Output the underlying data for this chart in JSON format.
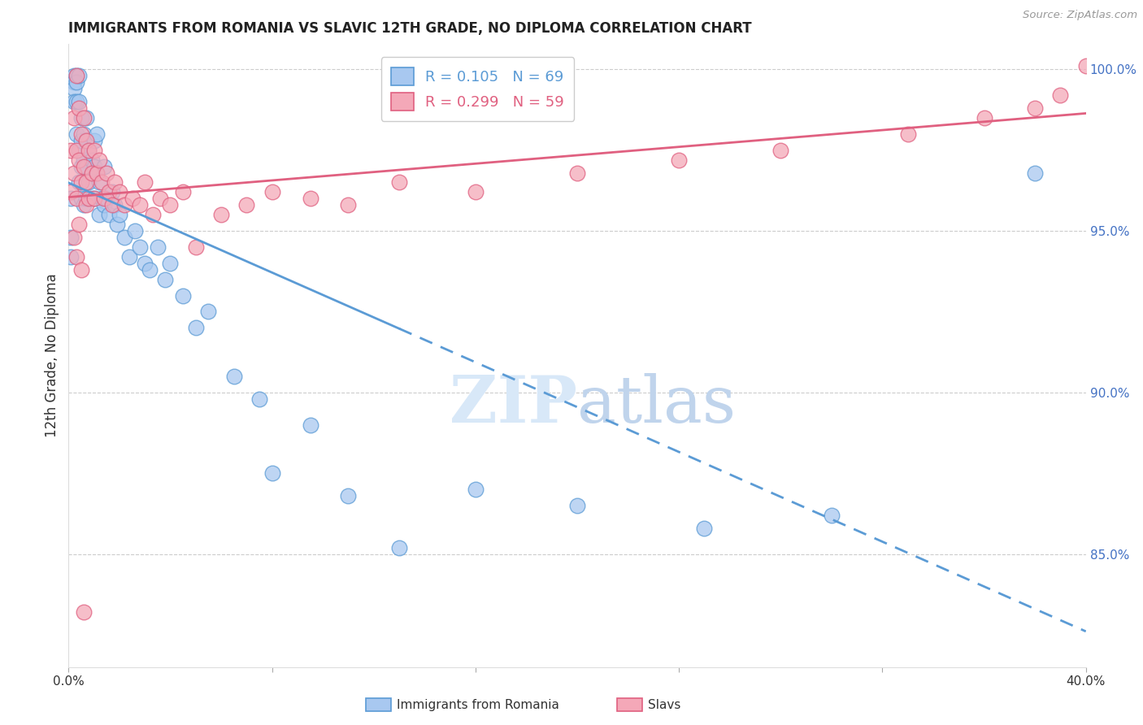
{
  "title": "IMMIGRANTS FROM ROMANIA VS SLAVIC 12TH GRADE, NO DIPLOMA CORRELATION CHART",
  "source": "Source: ZipAtlas.com",
  "ylabel": "12th Grade, No Diploma",
  "legend_romania": "Immigrants from Romania",
  "legend_slavs": "Slavs",
  "R_romania": 0.105,
  "N_romania": 69,
  "R_slavs": 0.299,
  "N_slavs": 59,
  "color_romania": "#A8C8F0",
  "color_slavs": "#F4A8B8",
  "color_romania_line": "#5B9BD5",
  "color_slavs_line": "#E06080",
  "color_right_axis": "#4472C4",
  "watermark_zip": "#D0DCF0",
  "watermark_atlas": "#C0D0E8",
  "xmin": 0.0,
  "xmax": 0.4,
  "ymin": 0.815,
  "ymax": 1.008,
  "ylabel_right_ticks": [
    "100.0%",
    "95.0%",
    "90.0%",
    "85.0%"
  ],
  "ylabel_right_positions": [
    1.0,
    0.95,
    0.9,
    0.85
  ],
  "romania_x": [
    0.001,
    0.001,
    0.001,
    0.002,
    0.002,
    0.002,
    0.002,
    0.003,
    0.003,
    0.003,
    0.003,
    0.004,
    0.004,
    0.004,
    0.004,
    0.005,
    0.005,
    0.005,
    0.005,
    0.006,
    0.006,
    0.006,
    0.007,
    0.007,
    0.007,
    0.007,
    0.008,
    0.008,
    0.009,
    0.009,
    0.01,
    0.01,
    0.01,
    0.011,
    0.011,
    0.012,
    0.012,
    0.013,
    0.014,
    0.014,
    0.015,
    0.016,
    0.017,
    0.018,
    0.019,
    0.02,
    0.022,
    0.024,
    0.026,
    0.028,
    0.03,
    0.032,
    0.035,
    0.038,
    0.04,
    0.045,
    0.05,
    0.055,
    0.065,
    0.075,
    0.08,
    0.095,
    0.11,
    0.13,
    0.16,
    0.2,
    0.25,
    0.3,
    0.38
  ],
  "romania_y": [
    0.96,
    0.948,
    0.942,
    0.998,
    0.996,
    0.994,
    0.99,
    0.998,
    0.996,
    0.99,
    0.98,
    0.998,
    0.99,
    0.975,
    0.965,
    0.985,
    0.978,
    0.97,
    0.96,
    0.98,
    0.972,
    0.958,
    0.985,
    0.978,
    0.97,
    0.96,
    0.975,
    0.965,
    0.972,
    0.96,
    0.978,
    0.97,
    0.96,
    0.98,
    0.968,
    0.965,
    0.955,
    0.96,
    0.97,
    0.958,
    0.96,
    0.955,
    0.962,
    0.958,
    0.952,
    0.955,
    0.948,
    0.942,
    0.95,
    0.945,
    0.94,
    0.938,
    0.945,
    0.935,
    0.94,
    0.93,
    0.92,
    0.925,
    0.905,
    0.898,
    0.875,
    0.89,
    0.868,
    0.852,
    0.87,
    0.865,
    0.858,
    0.862,
    0.968
  ],
  "slavs_x": [
    0.001,
    0.001,
    0.002,
    0.002,
    0.003,
    0.003,
    0.003,
    0.004,
    0.004,
    0.005,
    0.005,
    0.006,
    0.006,
    0.007,
    0.007,
    0.007,
    0.008,
    0.008,
    0.009,
    0.01,
    0.01,
    0.011,
    0.012,
    0.013,
    0.014,
    0.015,
    0.016,
    0.017,
    0.018,
    0.02,
    0.022,
    0.025,
    0.028,
    0.03,
    0.033,
    0.036,
    0.04,
    0.045,
    0.05,
    0.06,
    0.07,
    0.08,
    0.095,
    0.11,
    0.13,
    0.16,
    0.2,
    0.24,
    0.28,
    0.33,
    0.36,
    0.38,
    0.39,
    0.4,
    0.002,
    0.003,
    0.004,
    0.005,
    0.006
  ],
  "slavs_y": [
    0.975,
    0.962,
    0.985,
    0.968,
    0.998,
    0.975,
    0.96,
    0.988,
    0.972,
    0.98,
    0.965,
    0.985,
    0.97,
    0.978,
    0.965,
    0.958,
    0.975,
    0.96,
    0.968,
    0.975,
    0.96,
    0.968,
    0.972,
    0.965,
    0.96,
    0.968,
    0.962,
    0.958,
    0.965,
    0.962,
    0.958,
    0.96,
    0.958,
    0.965,
    0.955,
    0.96,
    0.958,
    0.962,
    0.945,
    0.955,
    0.958,
    0.962,
    0.96,
    0.958,
    0.965,
    0.962,
    0.968,
    0.972,
    0.975,
    0.98,
    0.985,
    0.988,
    0.992,
    1.001,
    0.948,
    0.942,
    0.952,
    0.938,
    0.832
  ],
  "line_solid_end_x": 0.13,
  "line_dashed_start_x": 0.13
}
